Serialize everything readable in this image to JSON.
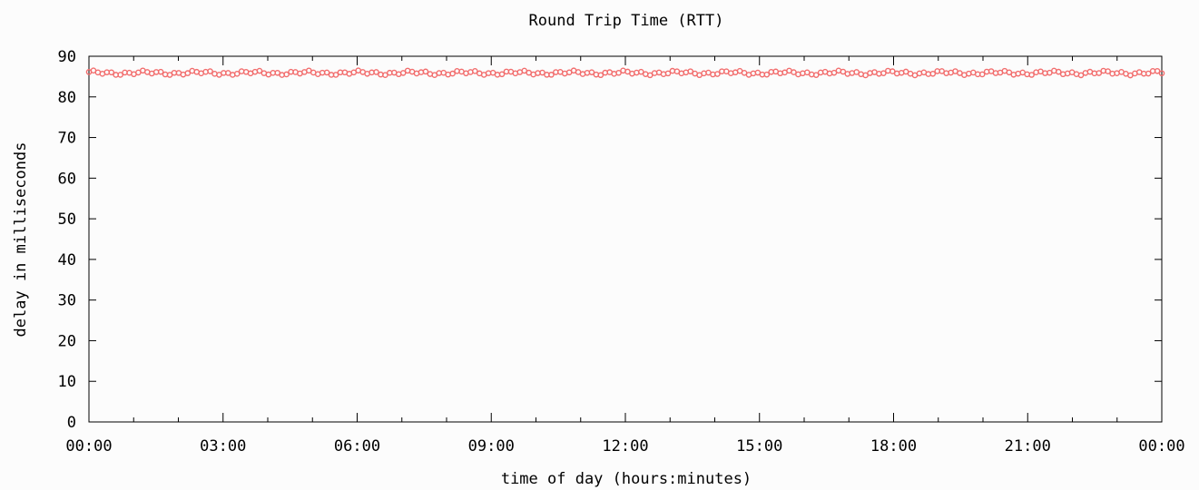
{
  "chart_data": {
    "type": "scatter",
    "title": "Round Trip Time (RTT)",
    "xlabel": "time of day (hours:minutes)",
    "ylabel": "delay in milliseconds",
    "ylim": [
      0,
      90
    ],
    "y_ticks": [
      0,
      10,
      20,
      30,
      40,
      50,
      60,
      70,
      80,
      90
    ],
    "xlim_hours": [
      0,
      24
    ],
    "x_ticks": [
      "00:00",
      "03:00",
      "06:00",
      "09:00",
      "12:00",
      "15:00",
      "18:00",
      "21:00",
      "00:00"
    ],
    "grid": false,
    "marker_color": "#f26d6d",
    "series": [
      {
        "baseline_ms": 85.9,
        "range_ms": [
          85.3,
          86.6
        ],
        "points_count": 240
      }
    ]
  }
}
